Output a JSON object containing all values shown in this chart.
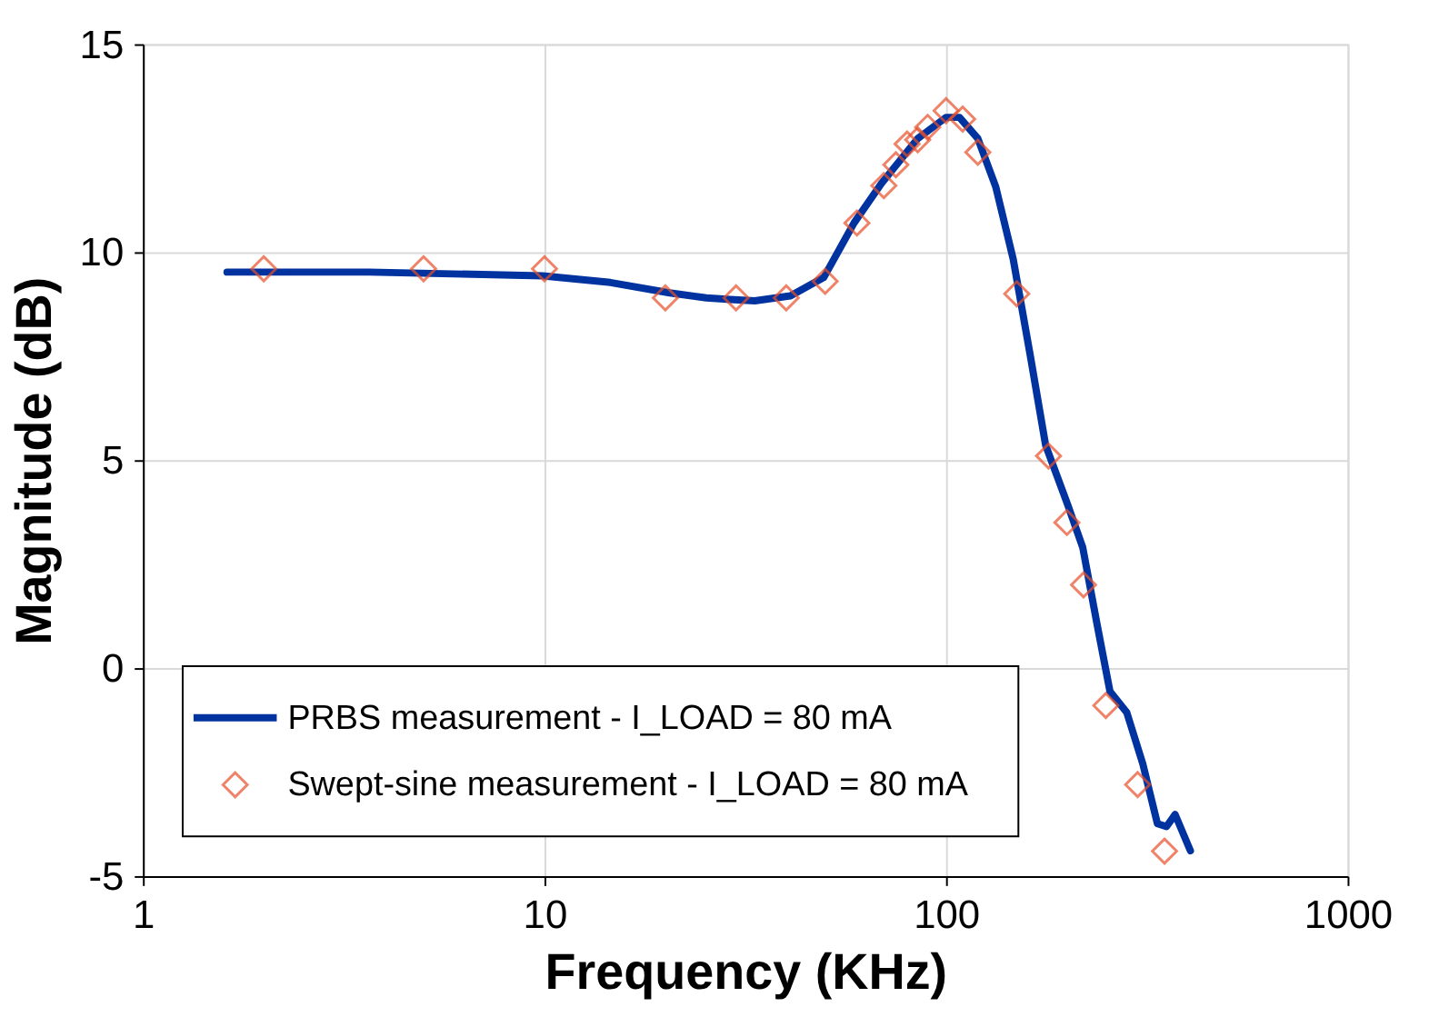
{
  "chart_data": {
    "type": "line",
    "xlabel": "Frequency (KHz)",
    "ylabel": "Magnitude (dB)",
    "log": "x",
    "xlim": [
      1,
      1000
    ],
    "xticks": [
      1,
      10,
      100,
      1000
    ],
    "ylim": [
      -5,
      15
    ],
    "yticks": [
      -5,
      0,
      5,
      10,
      15
    ],
    "grid": true,
    "legend": "bottom left",
    "series": [
      {
        "name": "PRBS measurement - I_LOAD = 80 mA",
        "color": "#0033a0",
        "marker": "none",
        "line_style": "solid",
        "x": [
          1.62,
          3.66,
          9.9,
          14.6,
          20.5,
          25.3,
          29,
          33.4,
          41,
          49.6,
          59,
          69,
          85,
          100,
          108,
          120,
          133,
          147,
          162,
          177,
          201,
          219,
          238,
          256,
          282,
          309,
          336,
          354,
          372,
          406
        ],
        "values": [
          9.52,
          9.52,
          9.43,
          9.27,
          9.02,
          8.9,
          8.86,
          8.83,
          8.95,
          9.39,
          10.7,
          11.65,
          12.73,
          13.24,
          13.24,
          12.73,
          11.57,
          9.83,
          7.53,
          5.36,
          3.92,
          2.9,
          1.03,
          -0.56,
          -1.07,
          -2.3,
          -3.74,
          -3.81,
          -3.52,
          -4.39
        ]
      },
      {
        "name": "Swept-sine measurement - I_LOAD = 80 mA",
        "type": "scatter",
        "color": "#e8502a",
        "marker": "diamond",
        "x": [
          2,
          5,
          10,
          20,
          30,
          40,
          50,
          60,
          70,
          75,
          80,
          85,
          90,
          100,
          110,
          120,
          150,
          180,
          200,
          220,
          250,
          300,
          350
        ],
        "values": [
          9.6,
          9.6,
          9.6,
          8.9,
          8.9,
          8.9,
          9.3,
          10.7,
          11.6,
          12.1,
          12.6,
          12.7,
          13.0,
          13.4,
          13.2,
          12.4,
          9.0,
          5.1,
          3.5,
          2.0,
          -0.9,
          -2.8,
          -4.4
        ]
      }
    ]
  }
}
